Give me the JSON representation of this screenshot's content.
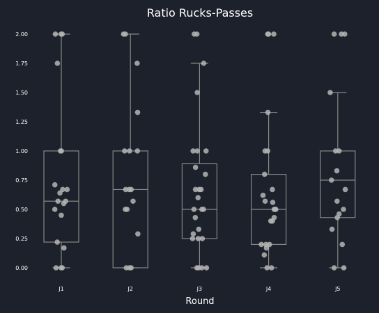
{
  "chart_data": {
    "type": "box",
    "title": "Ratio Rucks-Passes",
    "xlabel": "Round",
    "ylabel": "",
    "ylim": [
      -0.1,
      2.13
    ],
    "yticks": [
      "0.00",
      "0.25",
      "0.50",
      "0.75",
      "1.00",
      "1.25",
      "1.50",
      "1.75",
      "2.00"
    ],
    "categories": [
      "J1",
      "J2",
      "J3",
      "J4",
      "J5"
    ],
    "boxes": [
      {
        "category": "J1",
        "whisker_low": 0.0,
        "q1": 0.22,
        "median": 0.57,
        "q3": 1.0,
        "whisker_high": 2.0
      },
      {
        "category": "J2",
        "whisker_low": 0.0,
        "q1": 0.0,
        "median": 0.67,
        "q3": 1.0,
        "whisker_high": 2.0
      },
      {
        "category": "J3",
        "whisker_low": 0.0,
        "q1": 0.25,
        "median": 0.5,
        "q3": 0.89,
        "whisker_high": 1.75
      },
      {
        "category": "J4",
        "whisker_low": 0.0,
        "q1": 0.2,
        "median": 0.5,
        "q3": 0.8,
        "whisker_high": 1.33
      },
      {
        "category": "J5",
        "whisker_low": 0.0,
        "q1": 0.43,
        "median": 0.75,
        "q3": 1.0,
        "whisker_high": 1.5
      }
    ],
    "points": [
      [
        2.0,
        2.0,
        2.0,
        1.75,
        1.0,
        1.0,
        0.71,
        0.67,
        0.67,
        0.64,
        0.57,
        0.57,
        0.55,
        0.5,
        0.45,
        0.22,
        0.17,
        0.0,
        0.0,
        0.0
      ],
      [
        2.0,
        2.0,
        1.75,
        1.33,
        1.0,
        1.0,
        1.0,
        0.67,
        0.67,
        0.67,
        0.57,
        0.5,
        0.5,
        0.29,
        0.0,
        0.0,
        0.0
      ],
      [
        2.0,
        2.0,
        1.75,
        1.5,
        1.0,
        1.0,
        1.0,
        0.86,
        0.8,
        0.67,
        0.67,
        0.67,
        0.6,
        0.5,
        0.5,
        0.5,
        0.43,
        0.33,
        0.29,
        0.25,
        0.25,
        0.25,
        0.0,
        0.0,
        0.0,
        0.0
      ],
      [
        2.0,
        2.0,
        2.0,
        1.33,
        1.0,
        1.0,
        0.8,
        0.67,
        0.62,
        0.57,
        0.56,
        0.5,
        0.5,
        0.5,
        0.43,
        0.4,
        0.4,
        0.2,
        0.2,
        0.2,
        0.17,
        0.11,
        0.0,
        0.0
      ],
      [
        2.0,
        2.0,
        2.0,
        1.5,
        1.0,
        1.0,
        0.83,
        0.75,
        0.67,
        0.57,
        0.5,
        0.46,
        0.43,
        0.33,
        0.2,
        0.0,
        0.0
      ]
    ],
    "colors": {
      "background": "#1d212b",
      "box_edge": "#888888",
      "point": "#b4b4b4"
    },
    "grid": false,
    "legend": "none"
  }
}
